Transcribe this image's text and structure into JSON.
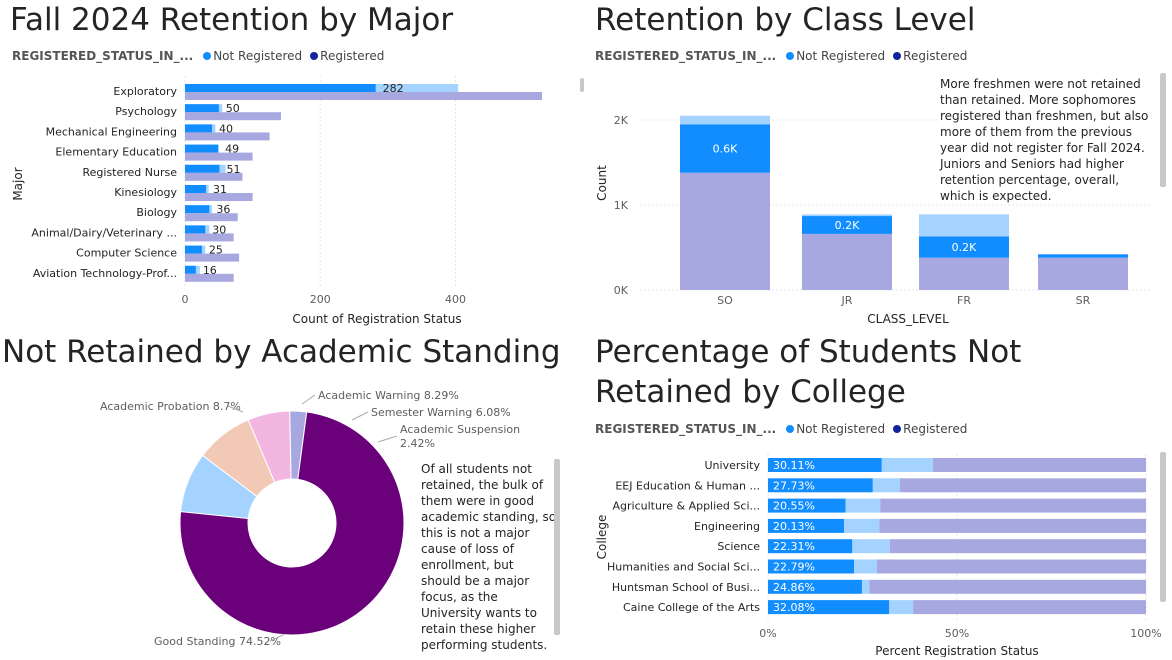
{
  "colors": {
    "not_registered": "#118dff",
    "registered": "#12239e",
    "bar_light": "#a5d3ff",
    "bar_purple": "#a8a8e0",
    "pie": [
      "#6b007b",
      "#a5d3ff",
      "#f2c9b6",
      "#f3b6e0",
      "#a8a8e0"
    ]
  },
  "legend": {
    "title": "REGISTERED_STATUS_IN_...",
    "not_registered": "Not Registered",
    "registered": "Registered"
  },
  "panel1": {
    "title": "Fall 2024 Retention by Major",
    "chart_data": {
      "type": "bar",
      "orientation": "horizontal",
      "title": "Fall 2024 Retention by Major",
      "xlabel": "Count of Registration Status",
      "ylabel": "Major",
      "xlim": [
        0,
        580
      ],
      "xticks": [
        "0",
        "200",
        "400"
      ],
      "categories": [
        "Exploratory",
        "Psychology",
        "Mechanical Engineering",
        "Elementary Education",
        "Registered Nurse",
        "Kinesiology",
        "Biology",
        "Animal/Dairy/Veterinary ...",
        "Computer Science",
        "Aviation Technology-Prof..."
      ],
      "series": [
        {
          "name": "Not Registered",
          "values": [
            282,
            50,
            40,
            49,
            51,
            31,
            36,
            30,
            25,
            16
          ]
        },
        {
          "values": [
            404,
            55,
            45,
            50,
            60,
            35,
            40,
            36,
            30,
            22
          ]
        },
        {
          "name": "Registered",
          "values": [
            528,
            142,
            125,
            100,
            85,
            100,
            78,
            72,
            80,
            72
          ]
        }
      ],
      "data_labels": [
        "282",
        "50",
        "40",
        "49",
        "51",
        "31",
        "36",
        "30",
        "25",
        "16"
      ]
    }
  },
  "panel2": {
    "title": "Retention by Class Level",
    "note": "More freshmen were not retained than retained. More sophomores registered than freshmen, but also more of them from the previous year did not register for Fall 2024. Juniors and Seniors had higher retention percentage, overall, which is expected.",
    "chart_data": {
      "type": "bar",
      "stacked": true,
      "title": "Retention by Class Level",
      "xlabel": "CLASS_LEVEL",
      "ylabel": "Count",
      "ylim": [
        0,
        2400
      ],
      "yticks": [
        "0K",
        "1K",
        "2K"
      ],
      "categories": [
        "SO",
        "JR",
        "FR",
        "SR"
      ],
      "series": [
        {
          "name": "Registered",
          "values": [
            1380,
            660,
            380,
            380
          ]
        },
        {
          "name": "Not Registered",
          "values": [
            570,
            210,
            250,
            40
          ]
        },
        {
          "values": [
            100,
            20,
            260,
            0
          ]
        }
      ],
      "data_labels": [
        "0.6K",
        "0.2K",
        "0.2K",
        ""
      ]
    }
  },
  "panel3": {
    "title": "Not Retained by Academic Standing",
    "note": "Of all students not retained, the bulk of them were in good academic standing, so this is not a major cause of loss of enrollment, but should be a major focus, as the University wants to retain these higher performing students.",
    "chart_data": {
      "type": "pie",
      "donut": true,
      "title": "Not Retained by Academic Standing",
      "categories": [
        "Good Standing",
        "Academic Probation",
        "Academic Warning",
        "Semester Warning",
        "Academic Suspension"
      ],
      "values": [
        74.52,
        8.7,
        8.29,
        6.08,
        2.42
      ],
      "labels": [
        "Good Standing 74.52%",
        "Academic Probation 8.7%",
        "Academic Warning 8.29%",
        "Semester Warning 6.08%",
        "Academic Suspension",
        "2.42%"
      ]
    }
  },
  "panel4": {
    "title_line1": "Percentage of Students Not",
    "title_line2": "Retained by College",
    "chart_data": {
      "type": "bar",
      "orientation": "horizontal",
      "stacked": true,
      "percent": true,
      "title": "Percentage of Students Not Retained by College",
      "xlabel": "Percent Registration Status",
      "ylabel": "College",
      "xlim": [
        0,
        100
      ],
      "xticks": [
        "0%",
        "50%",
        "100%"
      ],
      "categories": [
        "University",
        "EEJ Education & Human ...",
        "Agriculture & Applied Sci...",
        "Engineering",
        "Science",
        "Humanities and Social Sci...",
        "Huntsman School of Busi...",
        "Caine College of the Arts"
      ],
      "series": [
        {
          "name": "Not Registered",
          "values": [
            30.11,
            27.73,
            20.55,
            20.13,
            22.31,
            22.79,
            24.86,
            32.08
          ]
        },
        {
          "values": [
            13.5,
            7.2,
            9.2,
            9.3,
            9.9,
            6.0,
            2.0,
            6.3
          ]
        },
        {
          "name": "Registered",
          "values": [
            56.39,
            65.07,
            70.25,
            70.57,
            67.79,
            71.21,
            73.14,
            61.62
          ]
        }
      ],
      "data_labels": [
        "30.11%",
        "27.73%",
        "20.55%",
        "20.13%",
        "22.31%",
        "22.79%",
        "24.86%",
        "32.08%"
      ]
    }
  }
}
